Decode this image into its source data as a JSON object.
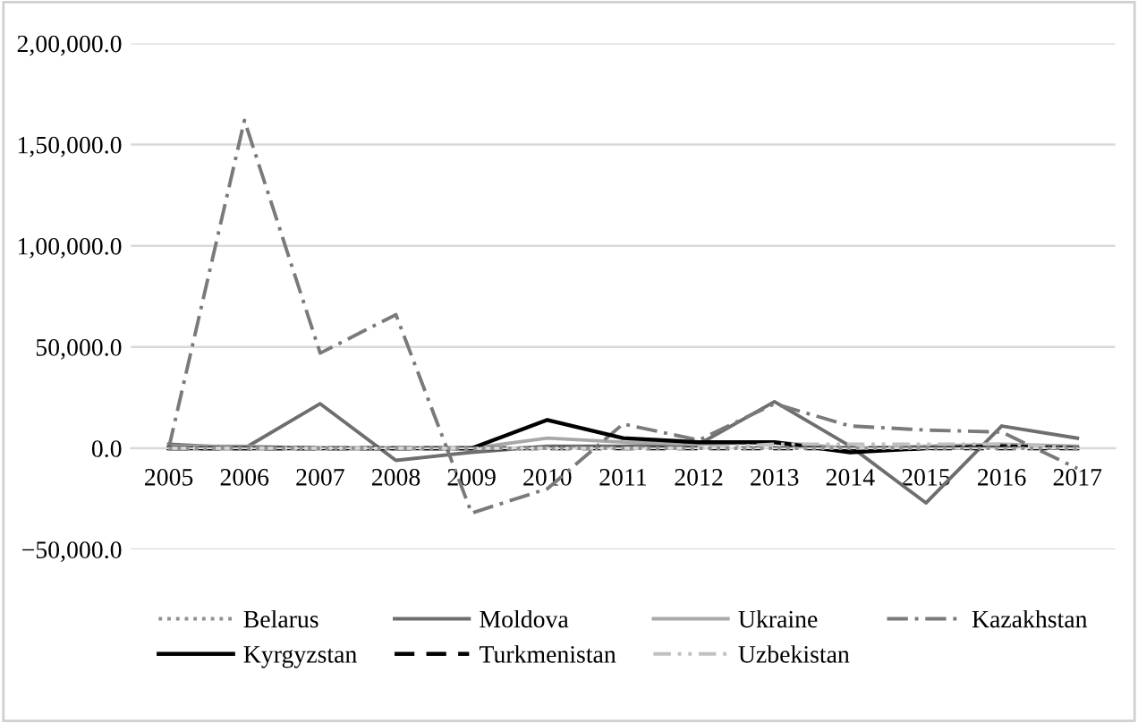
{
  "chart_data": {
    "type": "line",
    "categories": [
      "2005",
      "2006",
      "2007",
      "2008",
      "2009",
      "2010",
      "2011",
      "2012",
      "2013",
      "2014",
      "2015",
      "2016",
      "2017"
    ],
    "series": [
      {
        "name": "Belarus",
        "color": "#909090",
        "line_style": "dotted",
        "values": [
          0,
          0,
          0,
          0,
          0,
          0,
          0,
          0,
          0,
          0,
          0,
          0,
          0
        ]
      },
      {
        "name": "Moldova",
        "color": "#6e6e6e",
        "line_style": "solid",
        "values": [
          2000,
          0,
          22000,
          -6000,
          -2000,
          1000,
          1000,
          2000,
          23000,
          1000,
          -27000,
          11000,
          5000
        ]
      },
      {
        "name": "Ukraine",
        "color": "#a8a8a8",
        "line_style": "solid",
        "values": [
          1000,
          1000,
          0,
          0,
          0,
          5000,
          3000,
          2000,
          3000,
          0,
          1000,
          2000,
          1000
        ]
      },
      {
        "name": "Kazakhstan",
        "color": "#7a7a7a",
        "line_style": "dashdot",
        "values": [
          0,
          162000,
          47000,
          66000,
          -32000,
          -20000,
          12000,
          4000,
          22000,
          11000,
          9000,
          8000,
          -10000
        ]
      },
      {
        "name": "Kyrgyzstan",
        "color": "#000000",
        "line_style": "solid",
        "values": [
          0,
          0,
          0,
          0,
          0,
          14000,
          5000,
          3000,
          3000,
          -2000,
          0,
          1000,
          0
        ]
      },
      {
        "name": "Turkmenistan",
        "color": "#000000",
        "line_style": "dashed",
        "values": [
          0,
          0,
          0,
          0,
          0,
          0,
          0,
          0,
          0,
          0,
          0,
          0,
          0
        ]
      },
      {
        "name": "Uzbekistan",
        "color": "#c0c0c0",
        "line_style": "dashdotdot",
        "values": [
          0,
          0,
          0,
          0,
          0,
          0,
          0,
          0,
          2000,
          2000,
          2000,
          2000,
          0
        ]
      }
    ],
    "ylim": [
      -50000,
      200000
    ],
    "yticks": [
      {
        "value": -50000,
        "label": "−50,000.0"
      },
      {
        "value": 0,
        "label": "0.0"
      },
      {
        "value": 50000,
        "label": "50,000.0"
      },
      {
        "value": 100000,
        "label": "1,00,000.0"
      },
      {
        "value": 150000,
        "label": "1,50,000.0"
      },
      {
        "value": 200000,
        "label": "2,00,000.0"
      }
    ],
    "grid": "y",
    "legend": "bottom"
  }
}
